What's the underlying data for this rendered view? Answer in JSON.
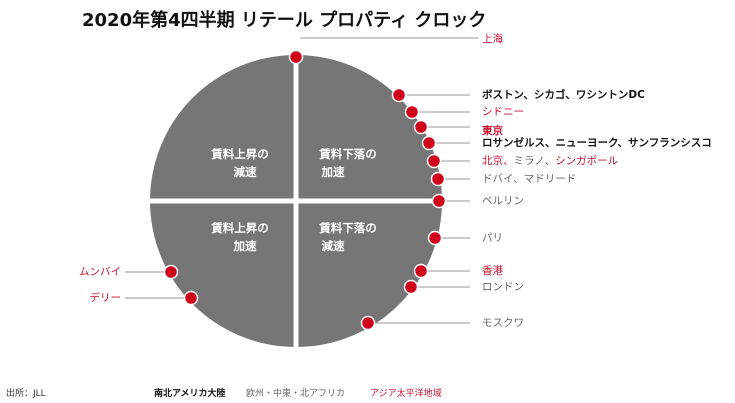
{
  "title": "2020年第4四半期 リテール プロパティ クロック",
  "quadrants": {
    "top_left": [
      "賃料上昇の",
      "減速"
    ],
    "top_right": [
      "賃料下落の",
      "加速"
    ],
    "bottom_left": [
      "賃料上昇の",
      "加速"
    ],
    "bottom_right": [
      "賃料下落の",
      "減速"
    ]
  },
  "cities": [
    {
      "label": "上海",
      "region": "asia_pacific"
    },
    {
      "label": "ボストン、シカゴ、ワシントンDC",
      "region": "americas"
    },
    {
      "label": "シドニー",
      "region": "asia_pacific"
    },
    {
      "label": "東京",
      "region": "asia_pacific"
    },
    {
      "label": "ロサンゼルス、ニューヨーク、サンフランシスコ",
      "region": "americas"
    },
    {
      "parts": [
        {
          "text": "北京、",
          "region": "asia_pacific"
        },
        {
          "text": "ミラノ、",
          "region": "emea"
        },
        {
          "text": "シンガポール",
          "region": "asia_pacific"
        }
      ]
    },
    {
      "label": "ドバイ、マドリード",
      "region": "emea"
    },
    {
      "label": "ベルリン",
      "region": "emea"
    },
    {
      "label": "パリ",
      "region": "emea"
    },
    {
      "label": "香港",
      "region": "asia_pacific"
    },
    {
      "label": "ロンドン",
      "region": "emea"
    },
    {
      "label": "モスクワ",
      "region": "emea"
    },
    {
      "label": "ムンバイ",
      "region": "asia_pacific"
    },
    {
      "label": "デリー",
      "region": "asia_pacific"
    }
  ],
  "legend": {
    "source": "出所：JLL",
    "americas": "南北アメリカ大陸",
    "emea": "欧州・中東・北アフリカ",
    "asia_pacific": "アジア太平洋地域"
  },
  "colors": {
    "circle": "#767676",
    "marker": "#d0021b",
    "americas": "#111111",
    "emea": "#666666",
    "asia_pacific": "#c8102e",
    "leader": "#9a9a9a"
  }
}
